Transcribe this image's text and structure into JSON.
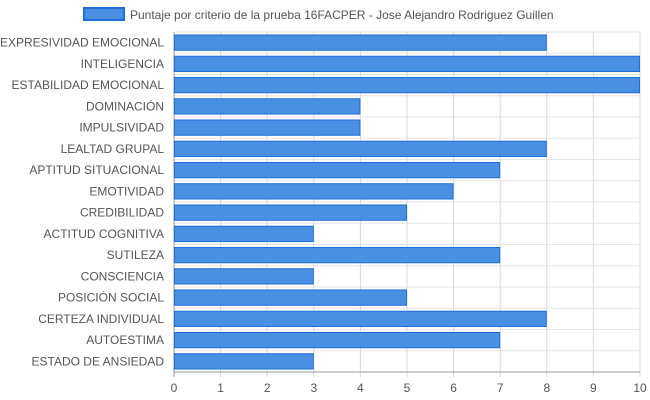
{
  "chart_data": {
    "type": "bar",
    "orientation": "horizontal",
    "title": "",
    "xlabel": "",
    "ylabel": "",
    "categories": [
      "EXPRESIVIDAD EMOCIONAL",
      "INTELIGENCIA",
      "ESTABILIDAD EMOCIONAL",
      "DOMINACIÓN",
      "IMPULSIVIDAD",
      "LEALTAD GRUPAL",
      "APTITUD SITUACIONAL",
      "EMOTIVIDAD",
      "CREDIBILIDAD",
      "ACTITUD COGNITIVA",
      "SUTILEZA",
      "CONSCIENCIA",
      "POSICIÓN SOCIAL",
      "CERTEZA INDIVIDUAL",
      "AUTOESTIMA",
      "ESTADO DE ANSIEDAD"
    ],
    "series": [
      {
        "name": "Puntaje por criterio de la prueba 16FACPER - Jose Alejandro Rodriguez Guillen",
        "values": [
          8,
          10,
          10,
          4,
          4,
          8,
          7,
          6,
          5,
          3,
          7,
          3,
          5,
          8,
          7,
          3
        ],
        "color": "#4a90e2",
        "border_color": "#1e6fd9"
      }
    ],
    "xlim": [
      0,
      10
    ],
    "x_ticks": [
      0,
      1,
      2,
      3,
      4,
      5,
      6,
      7,
      8,
      9,
      10
    ],
    "grid": true,
    "legend_position": "top"
  }
}
